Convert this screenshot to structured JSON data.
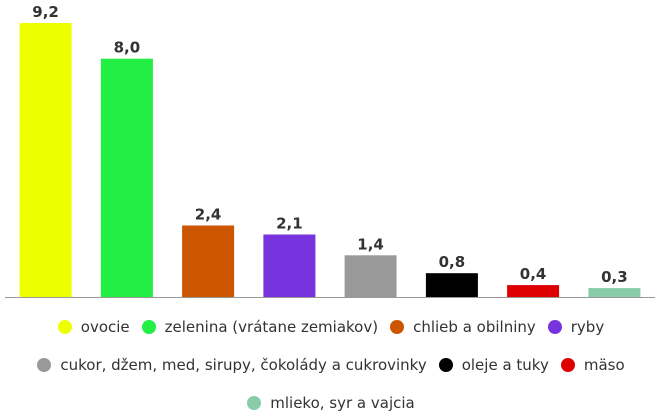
{
  "chart_data": {
    "type": "bar",
    "categories": [
      "ovocie",
      "zelenina (vrátane zemiakov)",
      "chlieb a obilniny",
      "ryby",
      "cukor, džem, med, sirupy, čokolády a cukrovinky",
      "oleje a tuky",
      "mäso",
      "mlieko, syr a vajcia"
    ],
    "values": [
      9.2,
      8.0,
      2.4,
      2.1,
      1.4,
      0.8,
      0.4,
      0.3
    ],
    "value_labels": [
      "9,2",
      "8,0",
      "2,4",
      "2,1",
      "1,4",
      "0,8",
      "0,4",
      "0,3"
    ],
    "colors": [
      "#eeff00",
      "#22ee44",
      "#cc5500",
      "#7733dd",
      "#999999",
      "#000000",
      "#dd0000",
      "#88ccaa"
    ],
    "title": "",
    "xlabel": "",
    "ylabel": "",
    "ylim": [
      0,
      9.2
    ],
    "grid": false,
    "legend_position": "bottom"
  }
}
